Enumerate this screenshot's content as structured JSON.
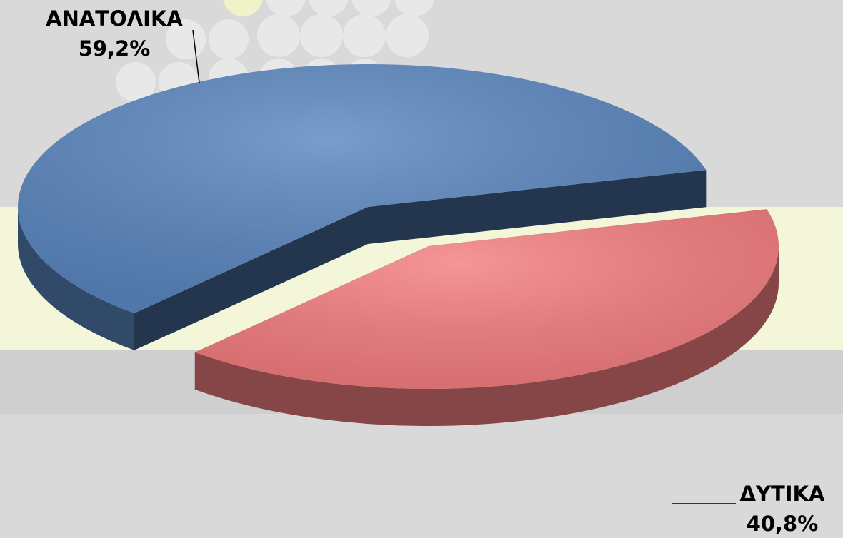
{
  "chart_data": {
    "type": "pie",
    "categories": [
      "ΑΝΑΤΟΛΙΚΑ",
      "ΔΥΤΙΚΑ"
    ],
    "values": [
      59.2,
      40.8
    ],
    "value_labels": [
      "59,2%",
      "40,8%"
    ],
    "colors": [
      "#5b87c0",
      "#f47e80"
    ]
  }
}
